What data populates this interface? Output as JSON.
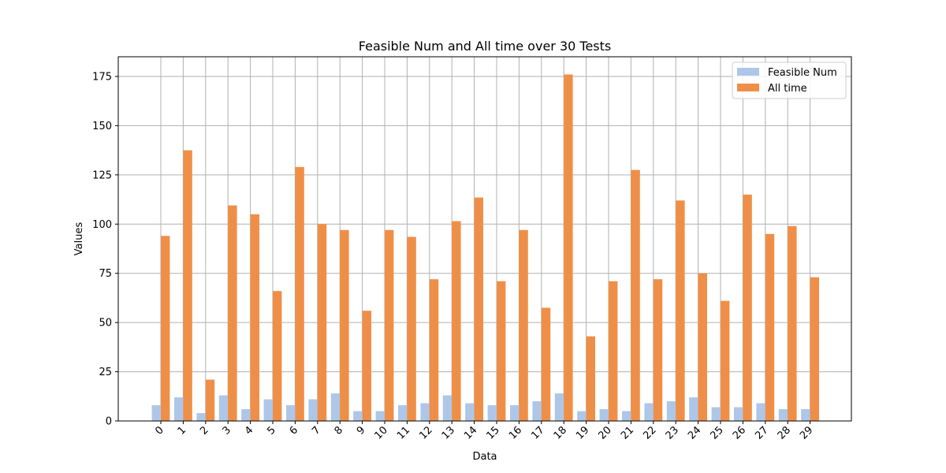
{
  "chart_data": {
    "type": "bar",
    "title": "Feasible Num and All time over 30 Tests",
    "xlabel": "Data",
    "ylabel": "Values",
    "categories": [
      "0",
      "1",
      "2",
      "3",
      "4",
      "5",
      "6",
      "7",
      "8",
      "9",
      "10",
      "11",
      "12",
      "13",
      "14",
      "15",
      "16",
      "17",
      "18",
      "19",
      "20",
      "21",
      "22",
      "23",
      "24",
      "25",
      "26",
      "27",
      "28",
      "29"
    ],
    "ylim": [
      0,
      185
    ],
    "yticks": [
      0,
      25,
      50,
      75,
      100,
      125,
      150,
      175
    ],
    "grid": true,
    "legend_position": "top-right",
    "series": [
      {
        "name": "Feasible Num",
        "color": "#aec7e8",
        "values": [
          8,
          12,
          4,
          13,
          6,
          11,
          8,
          11,
          14,
          5,
          5,
          8,
          9,
          13,
          9,
          8,
          8,
          10,
          14,
          5,
          6,
          5,
          9,
          10,
          12,
          7,
          7,
          9,
          6,
          6
        ]
      },
      {
        "name": "All time",
        "color": "#ef8f47",
        "values": [
          94,
          137.5,
          21,
          109.5,
          105,
          66,
          129,
          100,
          97,
          56,
          97,
          93.5,
          72,
          101.5,
          113.5,
          71,
          97,
          57.5,
          176,
          43,
          71,
          127.5,
          72,
          112,
          75,
          61,
          115,
          95,
          99,
          73
        ]
      }
    ]
  }
}
